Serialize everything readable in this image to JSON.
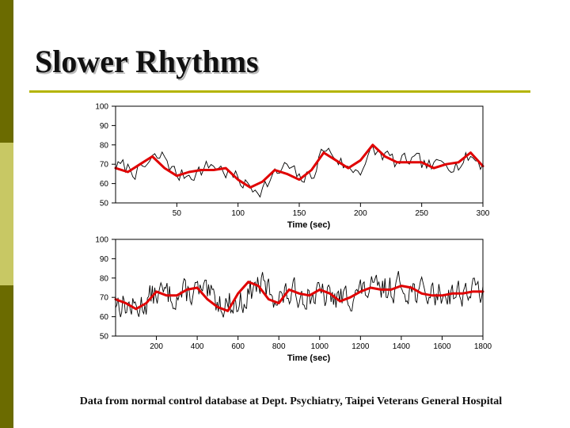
{
  "slide": {
    "title": "Slower Rhythms",
    "caption": "Data from normal control database at Dept. Psychiatry, Taipei Veterans General Hospital",
    "colors": {
      "sidebar_dark": "#6b6b00",
      "sidebar_light": "#c8c864",
      "rule": "#b4b400",
      "smooth_line": "#e00000",
      "raw_line": "#000000"
    }
  },
  "chart_data": [
    {
      "type": "line",
      "xlabel": "Time (sec)",
      "ylabel": "",
      "xlim": [
        0,
        300
      ],
      "ylim": [
        50,
        100
      ],
      "xticks": [
        50,
        100,
        150,
        200,
        250,
        300
      ],
      "yticks": [
        50,
        60,
        70,
        80,
        90,
        100
      ],
      "series": [
        {
          "role": "raw",
          "color": "#000000",
          "sample_step": 2,
          "seed": 7,
          "noise_amp": 6,
          "x": [
            0,
            10,
            20,
            30,
            40,
            50,
            60,
            70,
            80,
            90,
            100,
            110,
            120,
            130,
            140,
            150,
            160,
            170,
            180,
            190,
            200,
            210,
            220,
            230,
            240,
            250,
            260,
            270,
            280,
            290,
            300
          ],
          "y": [
            69,
            68,
            66,
            72,
            74,
            64,
            65,
            67,
            70,
            66,
            62,
            58,
            58,
            64,
            69,
            62,
            64,
            78,
            74,
            67,
            68,
            76,
            75,
            70,
            72,
            70,
            68,
            72,
            70,
            74,
            70
          ]
        },
        {
          "role": "smoothed",
          "color": "#e00000",
          "x": [
            0,
            10,
            20,
            30,
            40,
            50,
            60,
            70,
            80,
            90,
            100,
            110,
            120,
            130,
            140,
            150,
            160,
            170,
            180,
            190,
            200,
            210,
            220,
            230,
            240,
            250,
            260,
            270,
            280,
            290,
            300
          ],
          "y": [
            68,
            66,
            70,
            74,
            68,
            64,
            66,
            67,
            67,
            68,
            62,
            58,
            61,
            67,
            65,
            62,
            67,
            76,
            72,
            68,
            72,
            80,
            74,
            71,
            71,
            71,
            68,
            70,
            71,
            76,
            69
          ]
        }
      ]
    },
    {
      "type": "line",
      "xlabel": "Time (sec)",
      "ylabel": "",
      "xlim": [
        0,
        1800
      ],
      "ylim": [
        50,
        100
      ],
      "xticks": [
        200,
        400,
        600,
        800,
        1000,
        1200,
        1400,
        1600,
        1800
      ],
      "yticks": [
        50,
        60,
        70,
        80,
        90,
        100
      ],
      "series": [
        {
          "role": "raw",
          "color": "#000000",
          "sample_step": 6,
          "seed": 13,
          "noise_amp": 10,
          "x": [
            0,
            100,
            200,
            300,
            400,
            500,
            600,
            700,
            800,
            900,
            1000,
            1100,
            1200,
            1300,
            1400,
            1500,
            1600,
            1700,
            1800
          ],
          "y": [
            68,
            64,
            72,
            71,
            73,
            68,
            66,
            77,
            70,
            72,
            71,
            69,
            73,
            74,
            76,
            72,
            72,
            73,
            74
          ]
        },
        {
          "role": "smoothed",
          "color": "#e00000",
          "x": [
            0,
            50,
            100,
            150,
            200,
            250,
            300,
            350,
            400,
            450,
            500,
            550,
            600,
            650,
            700,
            750,
            800,
            850,
            900,
            950,
            1000,
            1050,
            1100,
            1150,
            1200,
            1250,
            1300,
            1350,
            1400,
            1450,
            1500,
            1550,
            1600,
            1650,
            1700,
            1750,
            1800
          ],
          "y": [
            69,
            67,
            64,
            67,
            73,
            71,
            71,
            74,
            75,
            69,
            65,
            63,
            72,
            78,
            76,
            69,
            67,
            74,
            72,
            71,
            74,
            72,
            68,
            70,
            73,
            75,
            74,
            74,
            76,
            75,
            72,
            71,
            71,
            72,
            72,
            73,
            73
          ]
        }
      ]
    }
  ]
}
